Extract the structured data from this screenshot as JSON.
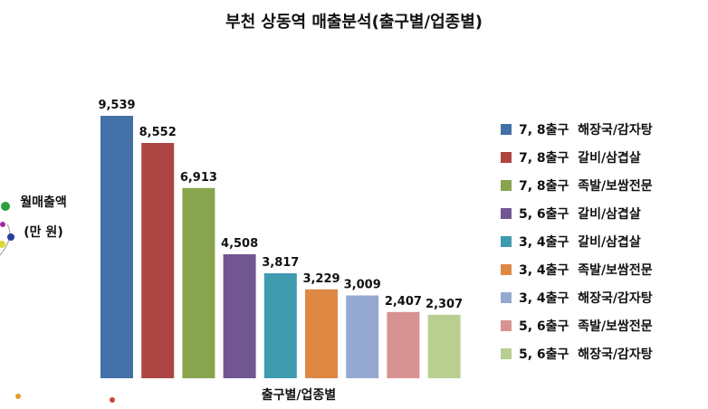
{
  "chart_data": {
    "type": "bar",
    "title": "부천 상동역 매출분석(출구별/업종별)",
    "ylabel_lines": [
      "월매출액",
      "(만 원)"
    ],
    "xlabel": "출구별/업종별",
    "legend_position": "right",
    "grid": false,
    "ylim": [
      0,
      10000
    ],
    "categories": [
      "7, 8출구  해장국/감자탕",
      "7, 8출구  갈비/삼겹살",
      "7, 8출구  족발/보쌈전문",
      "5, 6출구  갈비/삼겹살",
      "3, 4출구  갈비/삼겹살",
      "3, 4출구  족발/보쌈전문",
      "3, 4출구  해장국/감자탕",
      "5, 6출구  족발/보쌈전문",
      "5, 6출구  해장국/감자탕"
    ],
    "values": [
      9539,
      8552,
      6913,
      4508,
      3817,
      3229,
      3009,
      2407,
      2307
    ],
    "value_labels": [
      "9,539",
      "8,552",
      "6,913",
      "4,508",
      "3,817",
      "3,229",
      "3,009",
      "2,407",
      "2,307"
    ],
    "colors": [
      "#4470A8",
      "#AD4542",
      "#88A44E",
      "#725692",
      "#3F9BB0",
      "#DE8844",
      "#95A9D0",
      "#D79393",
      "#B9CF92"
    ]
  }
}
